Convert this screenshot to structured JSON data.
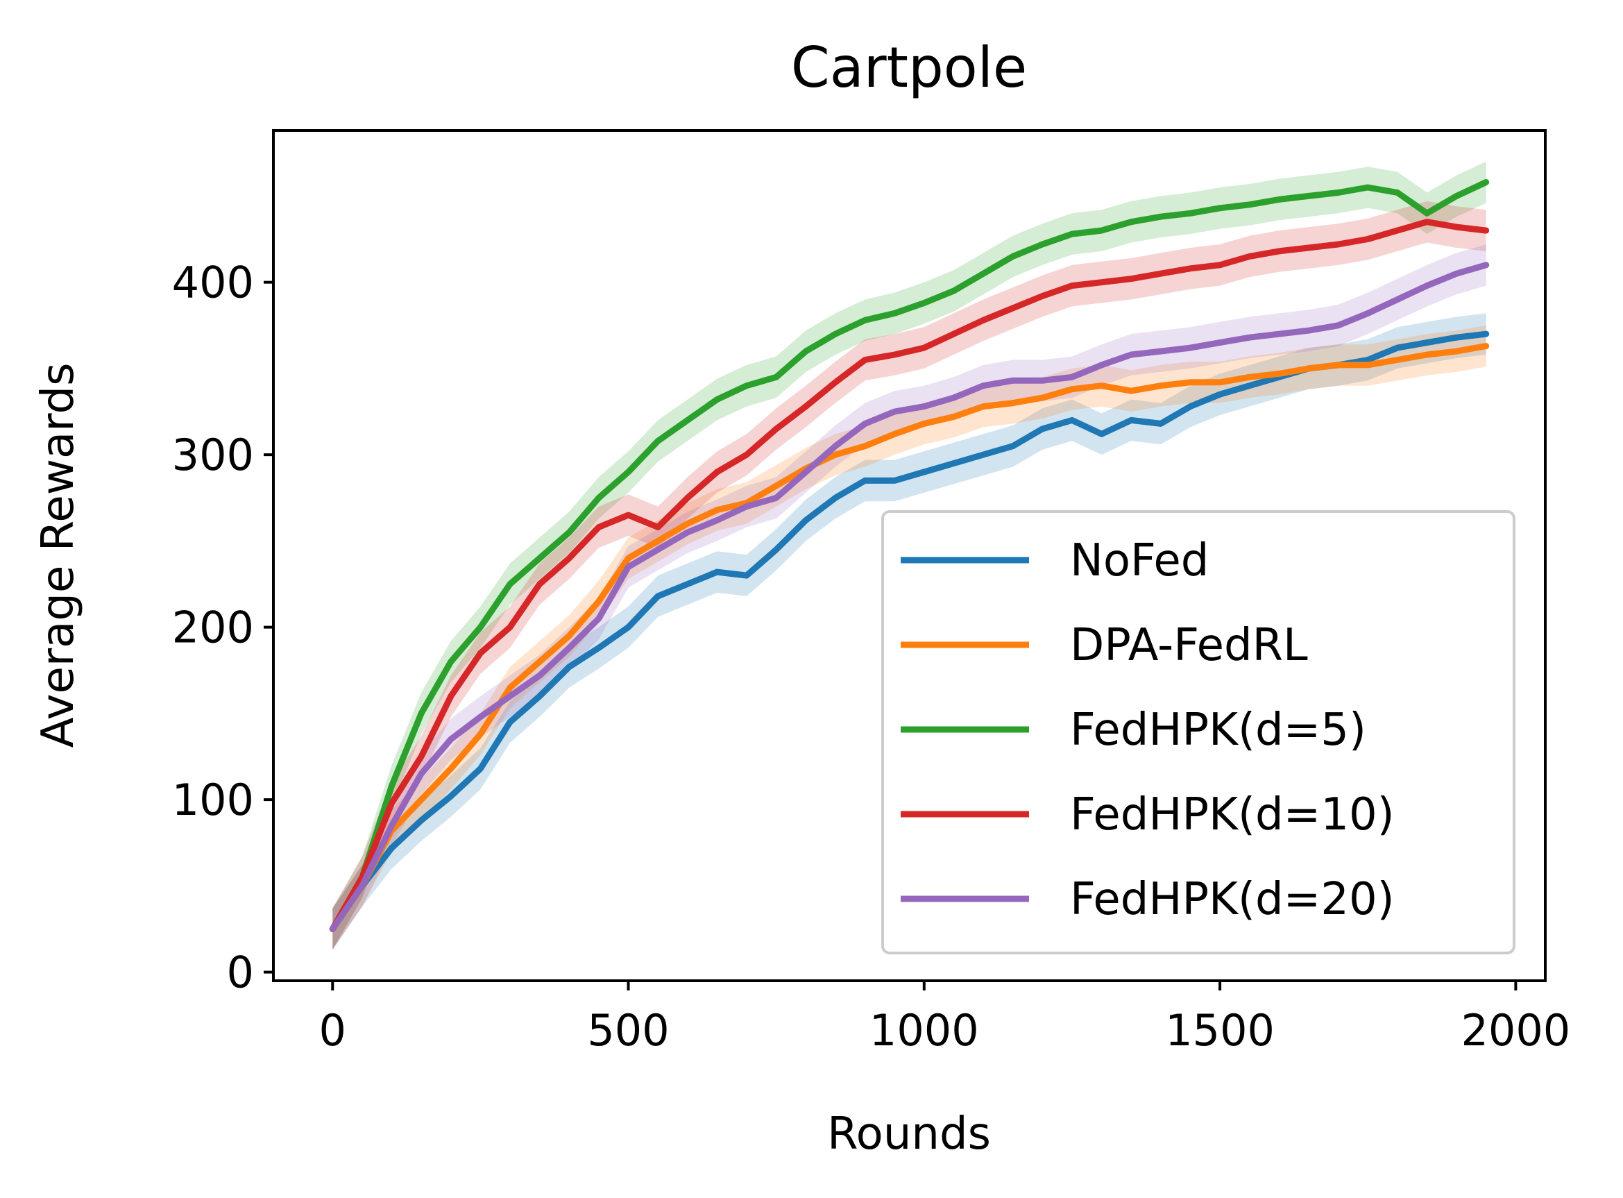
{
  "chart_data": {
    "type": "line",
    "title": "Cartpole",
    "xlabel": "Rounds",
    "ylabel": "Average Rewards",
    "xlim": [
      -100,
      2050
    ],
    "ylim": [
      -5,
      488
    ],
    "xticks": [
      0,
      500,
      1000,
      1500,
      2000
    ],
    "yticks": [
      0,
      100,
      200,
      300,
      400
    ],
    "grid": false,
    "legend_position": "lower-right",
    "series": [
      {
        "name": "NoFed",
        "color": "#1f77b4",
        "x": [
          0,
          50,
          100,
          150,
          200,
          250,
          300,
          350,
          400,
          450,
          500,
          550,
          600,
          650,
          700,
          750,
          800,
          850,
          900,
          950,
          1000,
          1050,
          1100,
          1150,
          1200,
          1250,
          1300,
          1350,
          1400,
          1450,
          1500,
          1550,
          1600,
          1650,
          1700,
          1750,
          1800,
          1850,
          1900,
          1950
        ],
        "y": [
          25,
          50,
          72,
          88,
          102,
          118,
          145,
          160,
          177,
          188,
          200,
          218,
          225,
          232,
          230,
          245,
          262,
          275,
          285,
          285,
          290,
          295,
          300,
          305,
          315,
          320,
          312,
          320,
          318,
          328,
          335,
          340,
          345,
          350,
          352,
          355,
          362,
          365,
          368,
          370
        ]
      },
      {
        "name": "DPA-FedRL",
        "color": "#ff7f0e",
        "x": [
          0,
          50,
          100,
          150,
          200,
          250,
          300,
          350,
          400,
          450,
          500,
          550,
          600,
          650,
          700,
          750,
          800,
          850,
          900,
          950,
          1000,
          1050,
          1100,
          1150,
          1200,
          1250,
          1300,
          1350,
          1400,
          1450,
          1500,
          1550,
          1600,
          1650,
          1700,
          1750,
          1800,
          1850,
          1900,
          1950
        ],
        "y": [
          25,
          50,
          82,
          100,
          118,
          138,
          165,
          180,
          195,
          215,
          240,
          250,
          260,
          268,
          272,
          282,
          292,
          300,
          305,
          312,
          318,
          322,
          328,
          330,
          333,
          338,
          340,
          337,
          340,
          342,
          342,
          345,
          347,
          350,
          352,
          352,
          355,
          358,
          360,
          363
        ]
      },
      {
        "name": "FedHPK(d=5)",
        "color": "#2ca02c",
        "x": [
          0,
          50,
          100,
          150,
          200,
          250,
          300,
          350,
          400,
          450,
          500,
          550,
          600,
          650,
          700,
          750,
          800,
          850,
          900,
          950,
          1000,
          1050,
          1100,
          1150,
          1200,
          1250,
          1300,
          1350,
          1400,
          1450,
          1500,
          1550,
          1600,
          1650,
          1700,
          1750,
          1800,
          1850,
          1900,
          1950
        ],
        "y": [
          25,
          55,
          108,
          150,
          180,
          200,
          225,
          240,
          255,
          275,
          290,
          308,
          320,
          332,
          340,
          345,
          360,
          370,
          378,
          382,
          388,
          395,
          405,
          415,
          422,
          428,
          430,
          435,
          438,
          440,
          443,
          445,
          448,
          450,
          452,
          455,
          452,
          440,
          450,
          458
        ]
      },
      {
        "name": "FedHPK(d=10)",
        "color": "#d62728",
        "x": [
          0,
          50,
          100,
          150,
          200,
          250,
          300,
          350,
          400,
          450,
          500,
          550,
          600,
          650,
          700,
          750,
          800,
          850,
          900,
          950,
          1000,
          1050,
          1100,
          1150,
          1200,
          1250,
          1300,
          1350,
          1400,
          1450,
          1500,
          1550,
          1600,
          1650,
          1700,
          1750,
          1800,
          1850,
          1900,
          1950
        ],
        "y": [
          25,
          55,
          98,
          125,
          160,
          185,
          200,
          225,
          240,
          258,
          265,
          258,
          275,
          290,
          300,
          315,
          328,
          342,
          355,
          358,
          362,
          370,
          378,
          385,
          392,
          398,
          400,
          402,
          405,
          408,
          410,
          415,
          418,
          420,
          422,
          425,
          430,
          435,
          432,
          430
        ]
      },
      {
        "name": "FedHPK(d=20)",
        "color": "#9467bd",
        "x": [
          0,
          50,
          100,
          150,
          200,
          250,
          300,
          350,
          400,
          450,
          500,
          550,
          600,
          650,
          700,
          750,
          800,
          850,
          900,
          950,
          1000,
          1050,
          1100,
          1150,
          1200,
          1250,
          1300,
          1350,
          1400,
          1450,
          1500,
          1550,
          1600,
          1650,
          1700,
          1750,
          1800,
          1850,
          1900,
          1950
        ],
        "y": [
          25,
          50,
          85,
          115,
          135,
          148,
          160,
          172,
          188,
          205,
          235,
          245,
          255,
          262,
          270,
          275,
          290,
          305,
          318,
          325,
          328,
          333,
          340,
          343,
          343,
          345,
          352,
          358,
          360,
          362,
          365,
          368,
          370,
          372,
          375,
          382,
          390,
          398,
          405,
          410
        ]
      }
    ]
  }
}
